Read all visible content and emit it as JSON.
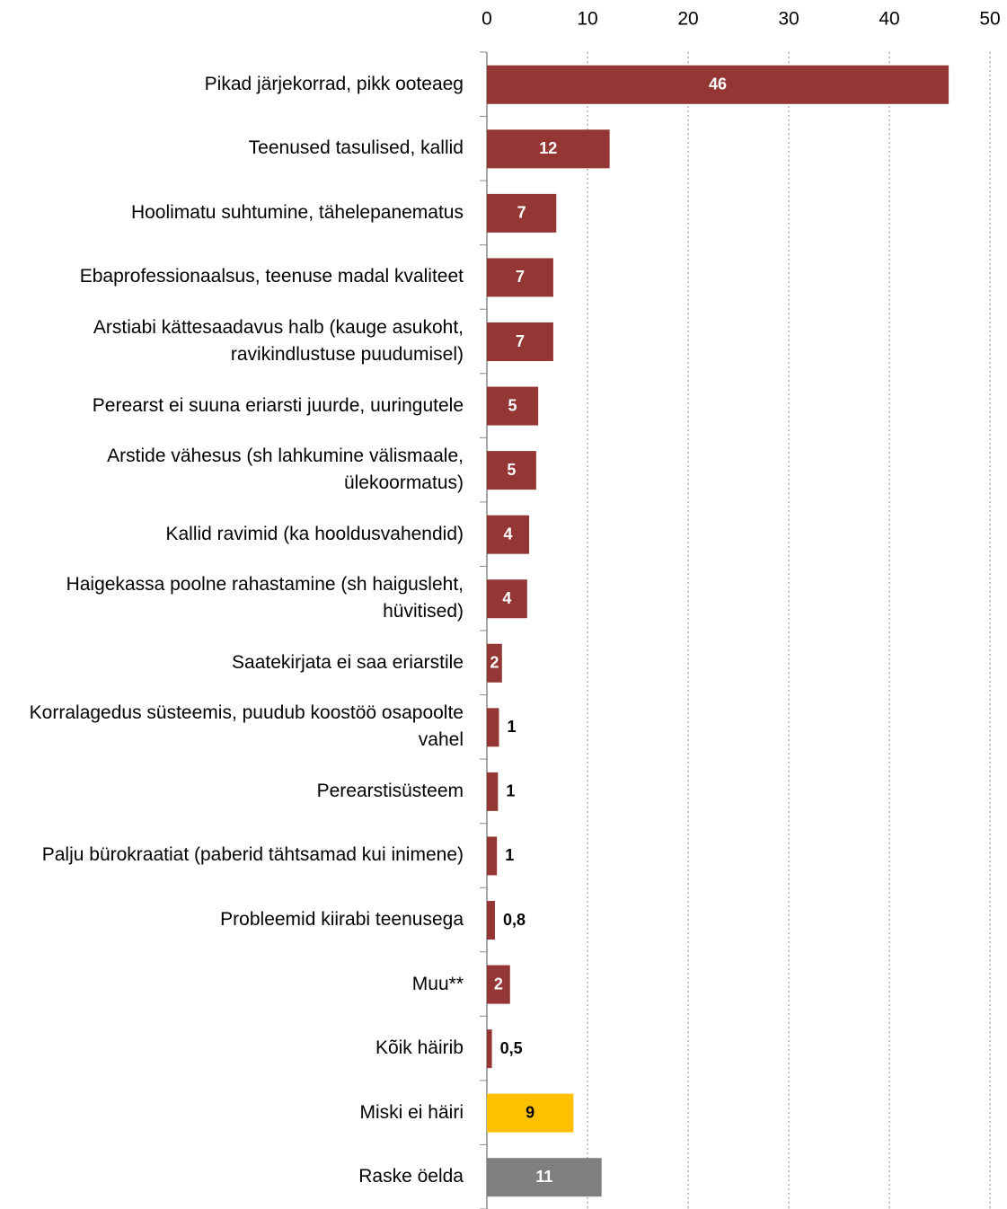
{
  "chart_data": {
    "type": "bar",
    "orientation": "horizontal",
    "categories": [
      "Pikad järjekorrad, pikk ooteaeg",
      "Teenused tasulised, kallid",
      "Hoolimatu suhtumine, tähelepanematus",
      "Ebaprofessionaalsus, teenuse madal kvaliteet",
      "Arstiabi kättesaadavus halb (kauge asukoht, ravikindlustuse puudumisel)",
      "Perearst ei suuna eriarsti juurde, uuringutele",
      "Arstide vähesus (sh lahkumine välismaale, ülekoormatus)",
      "Kallid ravimid (ka hooldusvahendid)",
      "Haigekassa poolne rahastamine (sh haigusleht, hüvitised)",
      "Saatekirjata ei saa eriarstile",
      "Korralagedus süsteemis, puudub koostöö osapoolte vahel",
      "Perearstisüsteem",
      "Palju bürokraatiat (paberid tähtsamad kui inimene)",
      "Probleemid kiirabi teenusega",
      "Muu**",
      "Kõik häirib",
      "Miski ei häiri",
      "Raske öelda"
    ],
    "values": [
      45.9,
      12.2,
      6.9,
      6.6,
      6.6,
      5.1,
      4.9,
      4.2,
      4.0,
      1.5,
      1.2,
      1.1,
      1.0,
      0.8,
      2.3,
      0.5,
      8.6,
      11.4
    ],
    "value_labels": [
      "46",
      "12",
      "7",
      "7",
      "7",
      "5",
      "5",
      "4",
      "4",
      "2",
      "1",
      "1",
      "1",
      "0,8",
      "2",
      "0,5",
      "9",
      "11"
    ],
    "colors": [
      "#943634",
      "#943634",
      "#943634",
      "#943634",
      "#943634",
      "#943634",
      "#943634",
      "#943634",
      "#943634",
      "#943634",
      "#943634",
      "#943634",
      "#943634",
      "#943634",
      "#943634",
      "#943634",
      "#ffc000",
      "#7f7f7f"
    ],
    "xlim": [
      0,
      50
    ],
    "xticks": [
      0,
      10,
      20,
      30,
      40,
      50
    ],
    "grid": true
  }
}
